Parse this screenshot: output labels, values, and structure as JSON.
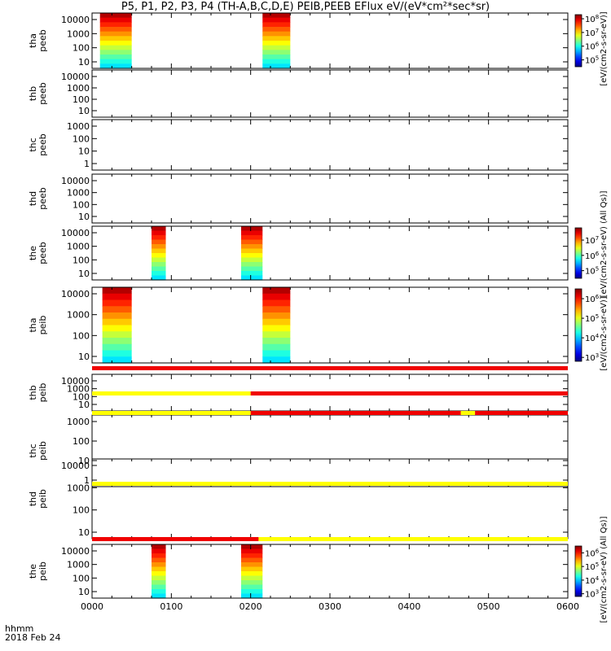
{
  "title": "P5, P1, P2, P3, P4 (TH-A,B,C,D,E) PEIB,PEEB EFlux eV/(eV*cm²*sec*sr)",
  "footer": {
    "time_label": "hhmm",
    "date_label": "2018 Feb 24"
  },
  "chart_data": {
    "type": "heatmap",
    "xlabel": "hhmm",
    "x_ticks": [
      "0000",
      "0100",
      "0200",
      "0300",
      "0400",
      "0500",
      "0600"
    ],
    "colorbar_unit_eflux": "[eV/(cm2-s-sr-eV)]",
    "colorbar_unit_all": "[eV/(cm2-s-sr-eV) (All Qs)]",
    "panels": [
      {
        "label": "tha peeb",
        "yticks": [
          "10",
          "100",
          "1000",
          "10000"
        ],
        "bursts": [
          [
            0.1,
            0.5
          ],
          [
            2.15,
            2.5
          ]
        ],
        "colorbar": {
          "ticks": [
            "10^5",
            "10^6",
            "10^7",
            "10^8"
          ],
          "min_exp": 4.5,
          "max_exp": 8.3
        }
      },
      {
        "label": "thb peeb",
        "yticks": [
          "10",
          "100",
          "1000",
          "10000"
        ],
        "bursts": []
      },
      {
        "label": "thc peeb",
        "yticks": [
          "1",
          "10",
          "100",
          "1000"
        ],
        "bursts": []
      },
      {
        "label": "thd peeb",
        "yticks": [
          "10",
          "100",
          "1000",
          "10000"
        ],
        "bursts": []
      },
      {
        "label": "the peeb",
        "yticks": [
          "10",
          "100",
          "1000",
          "10000"
        ],
        "bursts": [
          [
            0.75,
            0.93
          ],
          [
            1.88,
            2.15
          ]
        ],
        "colorbar": {
          "ticks": [
            "10^5",
            "10^6",
            "10^7"
          ],
          "min_exp": 4.5,
          "max_exp": 7.8
        }
      },
      {
        "label": "tha peib",
        "yticks": [
          "10",
          "100",
          "1000",
          "10000"
        ],
        "bursts": [
          [
            0.13,
            0.5
          ],
          [
            2.15,
            2.5
          ]
        ],
        "colorbar": {
          "ticks": [
            "10^3",
            "10^4",
            "10^5",
            "10^6"
          ],
          "min_exp": 2.8,
          "max_exp": 6.5
        }
      },
      {
        "label": "thb peib",
        "yticks": [
          "10",
          "100",
          "1000",
          "10000"
        ],
        "bursts": []
      },
      {
        "label": "thc peib",
        "yticks": [
          "1",
          "10",
          "100",
          "1000"
        ],
        "bursts": []
      },
      {
        "label": "thd peib",
        "yticks": [
          "10",
          "100",
          "1000",
          "10000"
        ],
        "bursts": []
      },
      {
        "label": "the peib",
        "yticks": [
          "10",
          "100",
          "1000",
          "10000"
        ],
        "bursts": [
          [
            0.75,
            0.93
          ],
          [
            1.88,
            2.15
          ]
        ],
        "colorbar": {
          "ticks": [
            "10^3",
            "10^4",
            "10^5",
            "10^6"
          ],
          "min_exp": 2.8,
          "max_exp": 6.5
        }
      }
    ],
    "status_bars": [
      {
        "after_panel": 5,
        "segments": [
          {
            "from": 0,
            "to": 6,
            "color": "#f00000"
          }
        ]
      },
      {
        "after_panel": 6,
        "segments": [
          {
            "from": 0,
            "to": 2.0,
            "color": "#ffff00"
          },
          {
            "from": 2.0,
            "to": 6,
            "color": "#f00000"
          }
        ]
      },
      {
        "after_panel": 7,
        "segments": [
          {
            "from": 0,
            "to": 2.0,
            "color": "#ffff00"
          },
          {
            "from": 2.0,
            "to": 4.65,
            "color": "#f00000"
          },
          {
            "from": 4.65,
            "to": 4.83,
            "color": "#ffff00"
          },
          {
            "from": 4.83,
            "to": 6,
            "color": "#f00000"
          }
        ]
      },
      {
        "after_panel": 8,
        "segments": [
          {
            "from": 0,
            "to": 6,
            "color": "#ffff00"
          }
        ]
      },
      {
        "after_panel": 9,
        "segments": [
          {
            "from": 0,
            "to": 2.1,
            "color": "#f00000"
          },
          {
            "from": 2.1,
            "to": 6,
            "color": "#ffff00"
          }
        ]
      }
    ]
  }
}
